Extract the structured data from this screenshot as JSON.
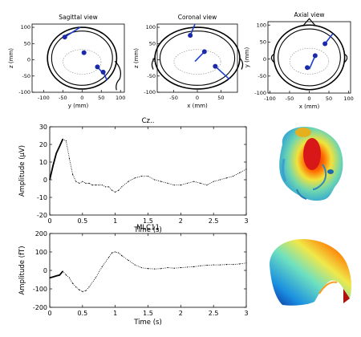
{
  "views": [
    {
      "title": "Sagittal view",
      "xlabel": "y (mm)",
      "ylabel": "z (mm)",
      "xticks": [
        "-100",
        "-50",
        "0",
        "50",
        "100"
      ],
      "yticks": [
        "100",
        "50",
        "0",
        "-50",
        "-100"
      ],
      "xlim": [
        -130,
        110
      ],
      "ylim": [
        -100,
        110
      ],
      "dipoles": [
        {
          "pos": [
            -45,
            70
          ],
          "dir": [
            40,
            30
          ]
        },
        {
          "pos": [
            5,
            22
          ],
          "dir": [
            0,
            0
          ]
        },
        {
          "pos": [
            40,
            -22
          ],
          "dir": [
            15,
            -20
          ]
        },
        {
          "pos": [
            55,
            -38
          ],
          "dir": [
            10,
            -25
          ]
        }
      ]
    },
    {
      "title": "Coronal view",
      "xlabel": "x (mm)",
      "ylabel": "z (mm)",
      "xticks": [
        "-50",
        "0",
        "50"
      ],
      "yticks": [
        "100",
        "50",
        "0",
        "-50",
        "-100"
      ],
      "xlim": [
        -85,
        85
      ],
      "ylim": [
        -100,
        110
      ],
      "dipoles": [
        {
          "pos": [
            -15,
            75
          ],
          "dir": [
            10,
            35
          ]
        },
        {
          "pos": [
            15,
            25
          ],
          "dir": [
            -20,
            -30
          ]
        },
        {
          "pos": [
            38,
            -20
          ],
          "dir": [
            30,
            -40
          ]
        }
      ]
    },
    {
      "title": "Axial view",
      "xlabel": "x (mm)",
      "ylabel": "y (mm)",
      "xticks": [
        "-100",
        "-50",
        "0",
        "50",
        "100"
      ],
      "yticks": [
        "100",
        "50",
        "0",
        "-50",
        "-100"
      ],
      "xlim": [
        -105,
        105
      ],
      "ylim": [
        -100,
        110
      ],
      "dipoles": [
        {
          "pos": [
            40,
            45
          ],
          "dir": [
            20,
            30
          ]
        },
        {
          "pos": [
            15,
            10
          ],
          "dir": [
            -15,
            -40
          ]
        },
        {
          "pos": [
            -5,
            -25
          ],
          "dir": [
            0,
            0
          ]
        }
      ]
    }
  ],
  "chart_data": [
    {
      "type": "line",
      "title": "Cz..",
      "xlabel": "Time (s)",
      "ylabel": "Amplitude (µV)",
      "xlim": [
        0,
        3
      ],
      "ylim": [
        -20,
        30
      ],
      "xticks": [
        "0",
        "0.5",
        "1",
        "1.5",
        "2",
        "2.5",
        "3"
      ],
      "yticks": [
        "30",
        "20",
        "10",
        "0",
        "-10",
        "-20"
      ],
      "grid": false,
      "series": [
        {
          "x": [
            0,
            0.05,
            0.1,
            0.15,
            0.2,
            0.25,
            0.3,
            0.35,
            0.4,
            0.45,
            0.5,
            0.55,
            0.6,
            0.65,
            0.7,
            0.75,
            0.8,
            0.85,
            0.9,
            0.95,
            1.0,
            1.05,
            1.1,
            1.2,
            1.3,
            1.4,
            1.5,
            1.6,
            1.7,
            1.8,
            1.9,
            2.0,
            2.1,
            2.2,
            2.3,
            2.4,
            2.5,
            2.6,
            2.7,
            2.8,
            2.9,
            3.0
          ],
          "y": [
            0,
            8,
            15,
            19,
            23,
            22,
            12,
            3,
            -1,
            -2,
            -1,
            -2,
            -2,
            -3,
            -3,
            -3,
            -3,
            -4,
            -4,
            -6,
            -7,
            -6,
            -4,
            -1,
            1,
            2,
            2,
            0,
            -1,
            -2,
            -3,
            -3,
            -2,
            -1,
            -2,
            -3,
            -1,
            0,
            1,
            2,
            4,
            6
          ]
        }
      ]
    },
    {
      "type": "line",
      "title": "MLC11",
      "xlabel": "Time (s)",
      "ylabel": "Amplitude (fT)",
      "xlim": [
        0,
        3
      ],
      "ylim": [
        -200,
        200
      ],
      "xticks": [
        "0",
        "0.5",
        "1",
        "1.5",
        "2",
        "2.5",
        "3"
      ],
      "yticks": [
        "200",
        "100",
        "0",
        "-100",
        "-200"
      ],
      "grid": false,
      "series": [
        {
          "x": [
            0,
            0.05,
            0.1,
            0.15,
            0.2,
            0.25,
            0.3,
            0.35,
            0.4,
            0.45,
            0.5,
            0.55,
            0.6,
            0.7,
            0.8,
            0.9,
            0.95,
            1.0,
            1.05,
            1.1,
            1.2,
            1.3,
            1.4,
            1.5,
            1.6,
            1.7,
            1.8,
            1.9,
            2.0,
            2.1,
            2.2,
            2.3,
            2.4,
            2.5,
            2.6,
            2.7,
            2.8,
            2.9,
            3.0
          ],
          "y": [
            -40,
            -35,
            -30,
            -25,
            -5,
            -25,
            -40,
            -70,
            -90,
            -105,
            -115,
            -110,
            -90,
            -40,
            20,
            70,
            95,
            100,
            95,
            80,
            55,
            30,
            15,
            10,
            8,
            10,
            15,
            12,
            15,
            18,
            20,
            25,
            28,
            30,
            30,
            32,
            32,
            35,
            40
          ]
        }
      ]
    }
  ]
}
